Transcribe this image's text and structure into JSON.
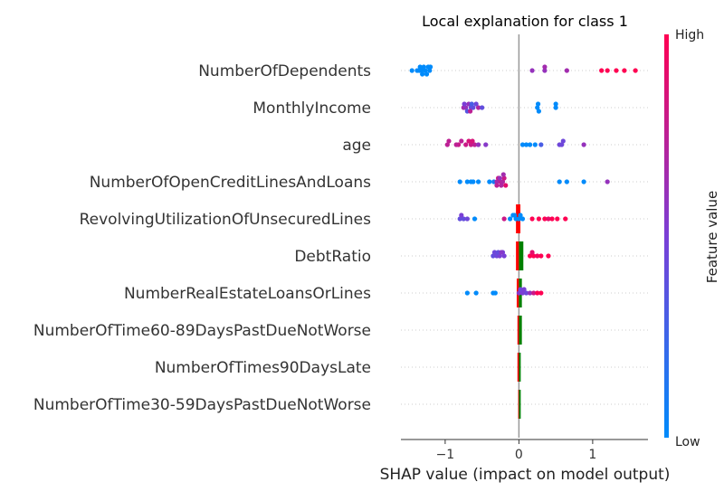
{
  "chart_data": {
    "type": "scatter",
    "title": "Local explanation for class 1",
    "xlabel": "SHAP value (impact on model output)",
    "xlim": [
      -1.6,
      1.75
    ],
    "xticks": [
      -1,
      0,
      1
    ],
    "xtick_labels": [
      "−1",
      "0",
      "1"
    ],
    "grid": false,
    "features": [
      "NumberOfDependents",
      "MonthlyIncome",
      "age",
      "NumberOfOpenCreditLinesAndLoans",
      "RevolvingUtilizationOfUnsecuredLines",
      "DebtRatio",
      "NumberRealEstateLoansOrLines",
      "NumberOfTime60-89DaysPastDueNotWorse",
      "NumberOfTimes90DaysLate",
      "NumberOfTime30-59DaysPastDueNotWorse"
    ],
    "points": [
      {
        "feature": 0,
        "x": -1.45,
        "v": 0.0
      },
      {
        "feature": 0,
        "x": -1.38,
        "v": 0.0
      },
      {
        "feature": 0,
        "x": -1.32,
        "v": 0.0
      },
      {
        "feature": 0,
        "x": -1.27,
        "v": 0.0
      },
      {
        "feature": 0,
        "x": -1.21,
        "v": 0.0
      },
      {
        "feature": 0,
        "x": -1.35,
        "v": 0.0
      },
      {
        "feature": 0,
        "x": -1.29,
        "v": 0.0
      },
      {
        "feature": 0,
        "x": -1.23,
        "v": 0.0
      },
      {
        "feature": 0,
        "x": -1.31,
        "v": 0.0
      },
      {
        "feature": 0,
        "x": -1.25,
        "v": 0.0
      },
      {
        "feature": 0,
        "x": -1.34,
        "v": 0.0
      },
      {
        "feature": 0,
        "x": -1.2,
        "v": 0.0
      },
      {
        "feature": 0,
        "x": 0.18,
        "v": 0.6
      },
      {
        "feature": 0,
        "x": 0.35,
        "v": 0.6
      },
      {
        "feature": 0,
        "x": 0.35,
        "v": 0.65
      },
      {
        "feature": 0,
        "x": 0.65,
        "v": 0.65
      },
      {
        "feature": 0,
        "x": 1.12,
        "v": 1.0
      },
      {
        "feature": 0,
        "x": 1.2,
        "v": 1.0
      },
      {
        "feature": 0,
        "x": 1.32,
        "v": 1.0
      },
      {
        "feature": 0,
        "x": 1.43,
        "v": 1.0
      },
      {
        "feature": 0,
        "x": 1.58,
        "v": 1.0
      },
      {
        "feature": 1,
        "x": -0.75,
        "v": 0.65
      },
      {
        "feature": 1,
        "x": -0.72,
        "v": 0.6
      },
      {
        "feature": 1,
        "x": -0.68,
        "v": 0.6
      },
      {
        "feature": 1,
        "x": -0.65,
        "v": 0.4
      },
      {
        "feature": 1,
        "x": -0.62,
        "v": 0.4
      },
      {
        "feature": 1,
        "x": -0.55,
        "v": 0.7
      },
      {
        "feature": 1,
        "x": -0.5,
        "v": 0.4
      },
      {
        "feature": 1,
        "x": -0.74,
        "v": 0.5
      },
      {
        "feature": 1,
        "x": -0.7,
        "v": 0.35
      },
      {
        "feature": 1,
        "x": -0.64,
        "v": 0.3
      },
      {
        "feature": 1,
        "x": -0.66,
        "v": 0.75
      },
      {
        "feature": 1,
        "x": -0.58,
        "v": 0.45
      },
      {
        "feature": 1,
        "x": 0.25,
        "v": 0.0
      },
      {
        "feature": 1,
        "x": 0.26,
        "v": 0.0
      },
      {
        "feature": 1,
        "x": 0.27,
        "v": 0.0
      },
      {
        "feature": 1,
        "x": 0.5,
        "v": 0.0
      },
      {
        "feature": 1,
        "x": 0.5,
        "v": 0.0
      },
      {
        "feature": 2,
        "x": -0.97,
        "v": 0.75
      },
      {
        "feature": 2,
        "x": -0.95,
        "v": 0.75
      },
      {
        "feature": 2,
        "x": -0.82,
        "v": 0.8
      },
      {
        "feature": 2,
        "x": -0.78,
        "v": 0.75
      },
      {
        "feature": 2,
        "x": -0.72,
        "v": 0.8
      },
      {
        "feature": 2,
        "x": -0.68,
        "v": 0.85
      },
      {
        "feature": 2,
        "x": -0.65,
        "v": 0.8
      },
      {
        "feature": 2,
        "x": -0.6,
        "v": 0.75
      },
      {
        "feature": 2,
        "x": -0.55,
        "v": 0.6
      },
      {
        "feature": 2,
        "x": -0.45,
        "v": 0.55
      },
      {
        "feature": 2,
        "x": -0.85,
        "v": 0.75
      },
      {
        "feature": 2,
        "x": -0.63,
        "v": 0.85
      },
      {
        "feature": 2,
        "x": 0.05,
        "v": 0.0
      },
      {
        "feature": 2,
        "x": 0.1,
        "v": 0.0
      },
      {
        "feature": 2,
        "x": 0.15,
        "v": 0.0
      },
      {
        "feature": 2,
        "x": 0.22,
        "v": 0.0
      },
      {
        "feature": 2,
        "x": 0.3,
        "v": 0.3
      },
      {
        "feature": 2,
        "x": 0.55,
        "v": 0.45
      },
      {
        "feature": 2,
        "x": 0.58,
        "v": 0.45
      },
      {
        "feature": 2,
        "x": 0.6,
        "v": 0.45
      },
      {
        "feature": 2,
        "x": 0.88,
        "v": 0.6
      },
      {
        "feature": 3,
        "x": -0.8,
        "v": 0.0
      },
      {
        "feature": 3,
        "x": -0.7,
        "v": 0.0
      },
      {
        "feature": 3,
        "x": -0.65,
        "v": 0.0
      },
      {
        "feature": 3,
        "x": -0.62,
        "v": 0.0
      },
      {
        "feature": 3,
        "x": -0.55,
        "v": 0.0
      },
      {
        "feature": 3,
        "x": -0.4,
        "v": 0.0
      },
      {
        "feature": 3,
        "x": -0.34,
        "v": 0.1
      },
      {
        "feature": 3,
        "x": -0.3,
        "v": 0.65
      },
      {
        "feature": 3,
        "x": -0.25,
        "v": 0.75
      },
      {
        "feature": 3,
        "x": -0.22,
        "v": 0.7
      },
      {
        "feature": 3,
        "x": -0.28,
        "v": 0.8
      },
      {
        "feature": 3,
        "x": -0.2,
        "v": 0.8
      },
      {
        "feature": 3,
        "x": -0.26,
        "v": 0.6
      },
      {
        "feature": 3,
        "x": -0.18,
        "v": 0.9
      },
      {
        "feature": 3,
        "x": -0.24,
        "v": 0.7
      },
      {
        "feature": 3,
        "x": -0.3,
        "v": 0.75
      },
      {
        "feature": 3,
        "x": -0.21,
        "v": 0.65
      },
      {
        "feature": 3,
        "x": 0.55,
        "v": 0.0
      },
      {
        "feature": 3,
        "x": 0.65,
        "v": 0.0
      },
      {
        "feature": 3,
        "x": 0.88,
        "v": 0.0
      },
      {
        "feature": 3,
        "x": 1.2,
        "v": 0.6
      },
      {
        "feature": 4,
        "x": -0.8,
        "v": 0.4
      },
      {
        "feature": 4,
        "x": -0.75,
        "v": 0.4
      },
      {
        "feature": 4,
        "x": -0.7,
        "v": 0.45
      },
      {
        "feature": 4,
        "x": -0.6,
        "v": 0.0
      },
      {
        "feature": 4,
        "x": -0.78,
        "v": 0.5
      },
      {
        "feature": 4,
        "x": -0.2,
        "v": 0.8
      },
      {
        "feature": 4,
        "x": -0.12,
        "v": 0.0
      },
      {
        "feature": 4,
        "x": -0.08,
        "v": 0.0
      },
      {
        "feature": 4,
        "x": -0.04,
        "v": 0.0
      },
      {
        "feature": 4,
        "x": 0.0,
        "v": 0.0
      },
      {
        "feature": 4,
        "x": 0.05,
        "v": 0.0
      },
      {
        "feature": 4,
        "x": -0.06,
        "v": 0.0
      },
      {
        "feature": 4,
        "x": 0.02,
        "v": 0.0
      },
      {
        "feature": 4,
        "x": 0.18,
        "v": 1.0
      },
      {
        "feature": 4,
        "x": 0.27,
        "v": 1.0
      },
      {
        "feature": 4,
        "x": 0.35,
        "v": 1.0
      },
      {
        "feature": 4,
        "x": 0.4,
        "v": 0.9
      },
      {
        "feature": 4,
        "x": 0.45,
        "v": 1.0
      },
      {
        "feature": 4,
        "x": 0.52,
        "v": 1.0
      },
      {
        "feature": 4,
        "x": 0.63,
        "v": 1.0
      },
      {
        "feature": 5,
        "x": -0.35,
        "v": 0.4
      },
      {
        "feature": 5,
        "x": -0.3,
        "v": 0.45
      },
      {
        "feature": 5,
        "x": -0.26,
        "v": 0.5
      },
      {
        "feature": 5,
        "x": -0.2,
        "v": 0.5
      },
      {
        "feature": 5,
        "x": -0.33,
        "v": 0.45
      },
      {
        "feature": 5,
        "x": -0.22,
        "v": 0.5
      },
      {
        "feature": 5,
        "x": -0.28,
        "v": 0.4
      },
      {
        "feature": 5,
        "x": -0.24,
        "v": 0.55
      },
      {
        "feature": 5,
        "x": 0.15,
        "v": 1.0
      },
      {
        "feature": 5,
        "x": 0.2,
        "v": 1.0
      },
      {
        "feature": 5,
        "x": 0.25,
        "v": 0.95
      },
      {
        "feature": 5,
        "x": 0.3,
        "v": 1.0
      },
      {
        "feature": 5,
        "x": 0.4,
        "v": 1.0
      },
      {
        "feature": 5,
        "x": 0.18,
        "v": 0.9
      },
      {
        "feature": 6,
        "x": -0.7,
        "v": 0.0
      },
      {
        "feature": 6,
        "x": -0.58,
        "v": 0.0
      },
      {
        "feature": 6,
        "x": -0.35,
        "v": 0.0
      },
      {
        "feature": 6,
        "x": -0.32,
        "v": 0.0
      },
      {
        "feature": 6,
        "x": 0.0,
        "v": 0.55
      },
      {
        "feature": 6,
        "x": 0.05,
        "v": 0.5
      },
      {
        "feature": 6,
        "x": 0.1,
        "v": 0.45
      },
      {
        "feature": 6,
        "x": 0.15,
        "v": 0.6
      },
      {
        "feature": 6,
        "x": 0.2,
        "v": 0.8
      },
      {
        "feature": 6,
        "x": 0.25,
        "v": 1.0
      },
      {
        "feature": 6,
        "x": 0.3,
        "v": 1.0
      },
      {
        "feature": 6,
        "x": 0.02,
        "v": 0.45
      },
      {
        "feature": 6,
        "x": 0.07,
        "v": 0.5
      }
    ],
    "bars": [
      {
        "feature": 4,
        "x0": -0.04,
        "x1": 0.02,
        "sign": "neg"
      },
      {
        "feature": 5,
        "x0": -0.04,
        "x1": 0.0,
        "sign": "neg"
      },
      {
        "feature": 5,
        "x0": 0.0,
        "x1": 0.06,
        "sign": "pos"
      },
      {
        "feature": 6,
        "x0": -0.03,
        "x1": 0.0,
        "sign": "neg"
      },
      {
        "feature": 6,
        "x0": 0.0,
        "x1": 0.04,
        "sign": "pos"
      },
      {
        "feature": 7,
        "x0": -0.02,
        "x1": 0.0,
        "sign": "neg"
      },
      {
        "feature": 7,
        "x0": 0.0,
        "x1": 0.04,
        "sign": "pos"
      },
      {
        "feature": 8,
        "x0": -0.02,
        "x1": 0.0,
        "sign": "neg"
      },
      {
        "feature": 8,
        "x0": 0.0,
        "x1": 0.02,
        "sign": "pos"
      },
      {
        "feature": 9,
        "x0": -0.01,
        "x1": 0.0,
        "sign": "neg"
      },
      {
        "feature": 9,
        "x0": 0.0,
        "x1": 0.02,
        "sign": "pos"
      }
    ],
    "colorbar": {
      "label": "Feature value",
      "high_label": "High",
      "low_label": "Low",
      "low_color": "#008bfb",
      "high_color": "#ff0052"
    },
    "colors": {
      "pos_bar": "#008000",
      "neg_bar": "#ff0000",
      "zero_line": "#999999",
      "axis": "#333333"
    }
  }
}
